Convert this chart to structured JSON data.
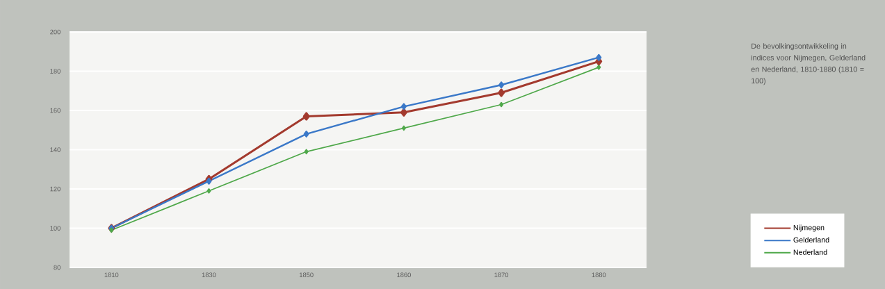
{
  "chart_data": {
    "type": "line",
    "title": "De bevolkingsontwikkeling in indices voor Nijmegen, Gelderland en Nederland, 1810-1880 (1810 = 100)",
    "categories": [
      "1810",
      "1830",
      "1850",
      "1860",
      "1870",
      "1880"
    ],
    "series": [
      {
        "name": "Nijmegen",
        "color": "#a33a2e",
        "values": [
          100,
          125,
          157,
          159,
          169,
          185
        ]
      },
      {
        "name": "Gelderland",
        "color": "#3a78c8",
        "values": [
          100,
          124,
          148,
          162,
          173,
          187
        ]
      },
      {
        "name": "Nederland",
        "color": "#4fa84a",
        "values": [
          99,
          119,
          139,
          151,
          163,
          182
        ]
      }
    ],
    "ylim": [
      80,
      200
    ],
    "yticks": [
      80,
      100,
      120,
      140,
      160,
      180,
      200
    ],
    "grid": "y",
    "legend": "bottom right",
    "marker": "diamond"
  }
}
